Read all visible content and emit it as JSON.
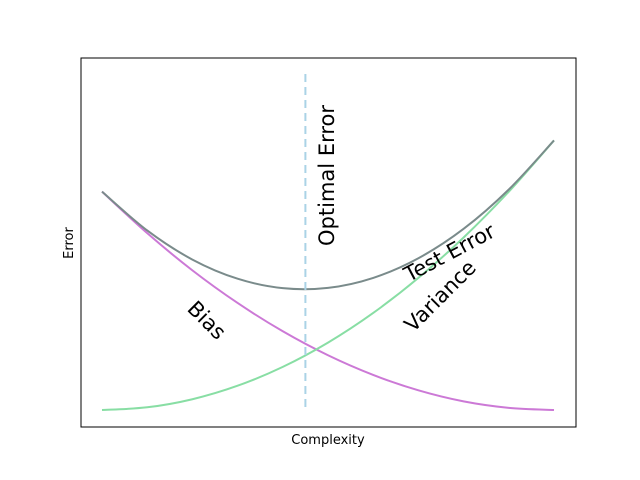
{
  "chart_data": {
    "type": "line",
    "title": "",
    "xlabel": "Complexity",
    "ylabel": "Error",
    "x_ticks": "none",
    "y_ticks": "none",
    "xlim": [
      0,
      1
    ],
    "ylim": [
      0,
      1.15
    ],
    "grid": false,
    "legend": "none",
    "series": [
      {
        "name": "Bias",
        "color": "#cc79d6",
        "x": [
          0,
          0.1,
          0.2,
          0.3,
          0.4,
          0.5,
          0.6,
          0.7,
          0.8,
          0.9,
          1.0
        ],
        "y": [
          0.81,
          0.656,
          0.518,
          0.397,
          0.292,
          0.203,
          0.13,
          0.073,
          0.032,
          0.008,
          0.0
        ]
      },
      {
        "name": "Variance",
        "color": "#88dea4",
        "x": [
          0,
          0.1,
          0.2,
          0.3,
          0.4,
          0.5,
          0.6,
          0.7,
          0.8,
          0.9,
          1.0
        ],
        "y": [
          0.0,
          0.01,
          0.04,
          0.09,
          0.16,
          0.25,
          0.36,
          0.49,
          0.64,
          0.81,
          1.0
        ]
      },
      {
        "name": "Test Error",
        "color": "#7a8b8b",
        "x": [
          0,
          0.1,
          0.2,
          0.3,
          0.4,
          0.5,
          0.6,
          0.7,
          0.8,
          0.9,
          1.0
        ],
        "y": [
          0.81,
          0.666,
          0.558,
          0.487,
          0.452,
          0.453,
          0.49,
          0.563,
          0.672,
          0.818,
          1.0
        ]
      }
    ],
    "annotations": [
      {
        "text": "Bias",
        "x": 0.23,
        "y": 0.33,
        "rotation": 45
      },
      {
        "text": "Variance",
        "x": 0.75,
        "y": 0.42,
        "rotation": -45
      },
      {
        "text": "Test Error",
        "x": 0.77,
        "y": 0.58,
        "rotation": -28
      },
      {
        "text": "Optimal Error",
        "x": 0.5,
        "y": 0.87,
        "rotation": -90
      }
    ],
    "optimal_line": {
      "x": 0.45,
      "color": "#aad3e6",
      "style": "dashed",
      "label": "Optimal Error"
    }
  }
}
